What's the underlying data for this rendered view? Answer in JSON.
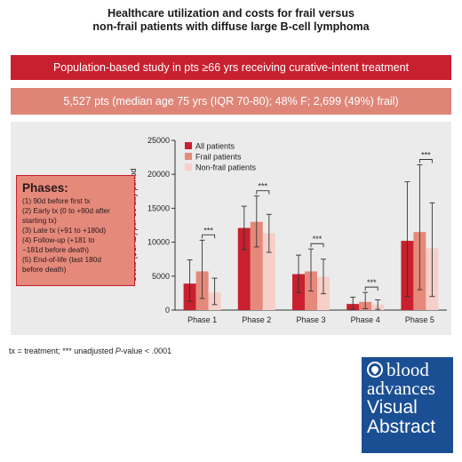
{
  "title": {
    "line1": "Healthcare utilization and costs for frail versus",
    "line2": "non-frail patients with diffuse large B-cell lymphoma"
  },
  "banner1": "Population-based study in pts ≥66 yrs receiving curative-intent treatment",
  "banner2": "5,527 pts (median age 75 yrs (IQR 70-80); 48% F; 2,699 (49%) frail)",
  "phases": {
    "title": "Phases:",
    "items": [
      "(1) 90d before first tx",
      "(2) Early tx (0 to +90d after",
      "starting tx)",
      "(3) Late tx (+91 to +180d)",
      "(4) Follow-up (+181 to",
      "−181d before death)",
      "(5) End-of-life (last 180d",
      "before death)"
    ]
  },
  "footnote": {
    "prefix": "tx = treatment; *** unadjusted ",
    "italic": "P",
    "suffix": "-value < .0001"
  },
  "logo": {
    "line1": "blood",
    "line2": "advances",
    "line3": "Visual",
    "line4": "Abstract"
  },
  "colors": {
    "all": "#c8202f",
    "frail": "#e5897b",
    "nonfrail": "#f5cfc8",
    "panel": "#ebebeb"
  },
  "chart_data": {
    "type": "bar",
    "ylabel": "Costs ($CAD) per 30 day period",
    "xlabel": "",
    "ylim": [
      0,
      25000
    ],
    "yticks": [
      0,
      5000,
      10000,
      15000,
      20000,
      25000
    ],
    "ytick_labels": [
      "0",
      "5000",
      "10000",
      "15000",
      "20000",
      "25000"
    ],
    "categories": [
      "Phase 1",
      "Phase 2",
      "Phase 3",
      "Phase 4",
      "Phase 5"
    ],
    "legend_position": "top-left",
    "series": [
      {
        "name": "All patients",
        "values": [
          3900,
          12100,
          5300,
          900,
          10200
        ],
        "err_low": [
          1300,
          8900,
          2600,
          100,
          2000
        ],
        "err_high": [
          7400,
          15300,
          8100,
          1900,
          18900
        ]
      },
      {
        "name": "Frail patients",
        "values": [
          5700,
          13000,
          5700,
          1200,
          11500
        ],
        "err_low": [
          1700,
          9300,
          2800,
          200,
          3000
        ],
        "err_high": [
          10300,
          16800,
          9000,
          2600,
          21400
        ]
      },
      {
        "name": "Non-frail patients",
        "values": [
          2600,
          11300,
          4900,
          800,
          9100
        ],
        "err_low": [
          800,
          8500,
          2400,
          100,
          2000
        ],
        "err_high": [
          4700,
          14100,
          7500,
          1500,
          15800
        ]
      }
    ],
    "significance": [
      "***",
      "***",
      "***",
      "***",
      "***"
    ]
  }
}
